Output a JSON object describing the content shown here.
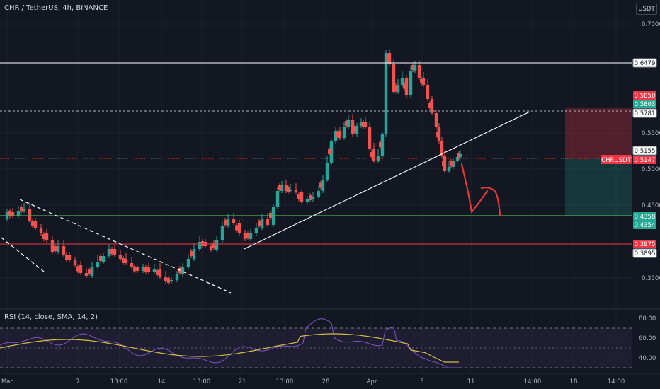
{
  "header": {
    "title": "CHR / TetherUS, 4h, BINANCE",
    "currency": "USDT"
  },
  "indicator": {
    "title": "RSI (14, close, SMA, 14, 2)"
  },
  "price_axis": {
    "ticks": [
      "0.7000",
      "0.5500",
      "0.5000",
      "0.4500",
      "0.3500"
    ],
    "labels": [
      {
        "text": "0.6479",
        "bg": "#ffffff",
        "fg": "#131722",
        "border": "#9598a1"
      },
      {
        "text": "0.5850",
        "bg": "#f23645",
        "fg": "#ffffff"
      },
      {
        "text": "0.5803",
        "bg": "#22ab94",
        "fg": "#ffffff"
      },
      {
        "text": "0.5781",
        "bg": "#ffffff",
        "fg": "#131722",
        "border": "#9598a1"
      },
      {
        "text": "0.5155",
        "bg": "#ffffff",
        "fg": "#131722",
        "border": "#9598a1"
      },
      {
        "text": "0.5147",
        "bg": "#f23645",
        "fg": "#ffffff"
      },
      {
        "text": "0.4358",
        "bg": "#22ab94",
        "fg": "#ffffff"
      },
      {
        "text": "0.4354",
        "bg": "#22ab94",
        "fg": "#ffffff"
      },
      {
        "text": "0.3975",
        "bg": "#f23645",
        "fg": "#ffffff"
      },
      {
        "text": "0.3895",
        "bg": "#ffffff",
        "fg": "#131722",
        "border": "#9598a1"
      }
    ],
    "symbol_tag": "CHRUSDT"
  },
  "rsi_axis": {
    "ticks": [
      "80.00",
      "60.00",
      "40.00"
    ]
  },
  "time_axis": {
    "ticks": [
      "Mar",
      "7",
      "13:00",
      "14",
      "13:00",
      "21",
      "13:00",
      "28",
      "Apr",
      "5",
      "11",
      "14:00",
      "18",
      "14:00"
    ]
  },
  "colors": {
    "bg": "#131722",
    "up": "#26a69a",
    "down": "#ef5350",
    "resistance": "#ffffff",
    "support": "#4caf50",
    "stop": "#f23645",
    "rsi": "#7e57c2",
    "rsi_ma": "#d4c044",
    "drawing": "#e53935",
    "short_profit": "#22ab94",
    "short_loss": "#f23645"
  }
}
